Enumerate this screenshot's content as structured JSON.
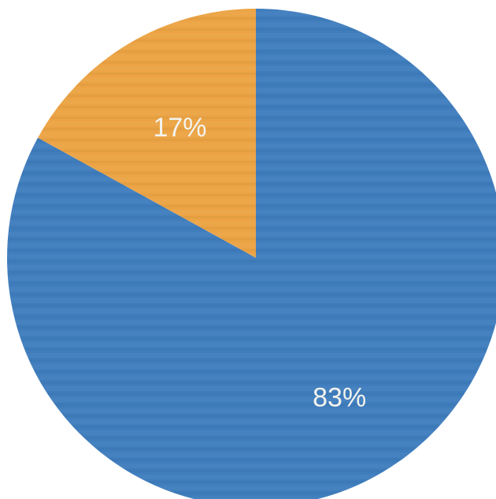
{
  "chart_data": {
    "type": "pie",
    "slices": [
      {
        "label": "83%",
        "value": 83,
        "color": "#3f7dbd"
      },
      {
        "label": "17%",
        "value": 17,
        "color": "#eba344"
      }
    ],
    "start": "top",
    "direction": "clockwise",
    "legend": "none"
  }
}
